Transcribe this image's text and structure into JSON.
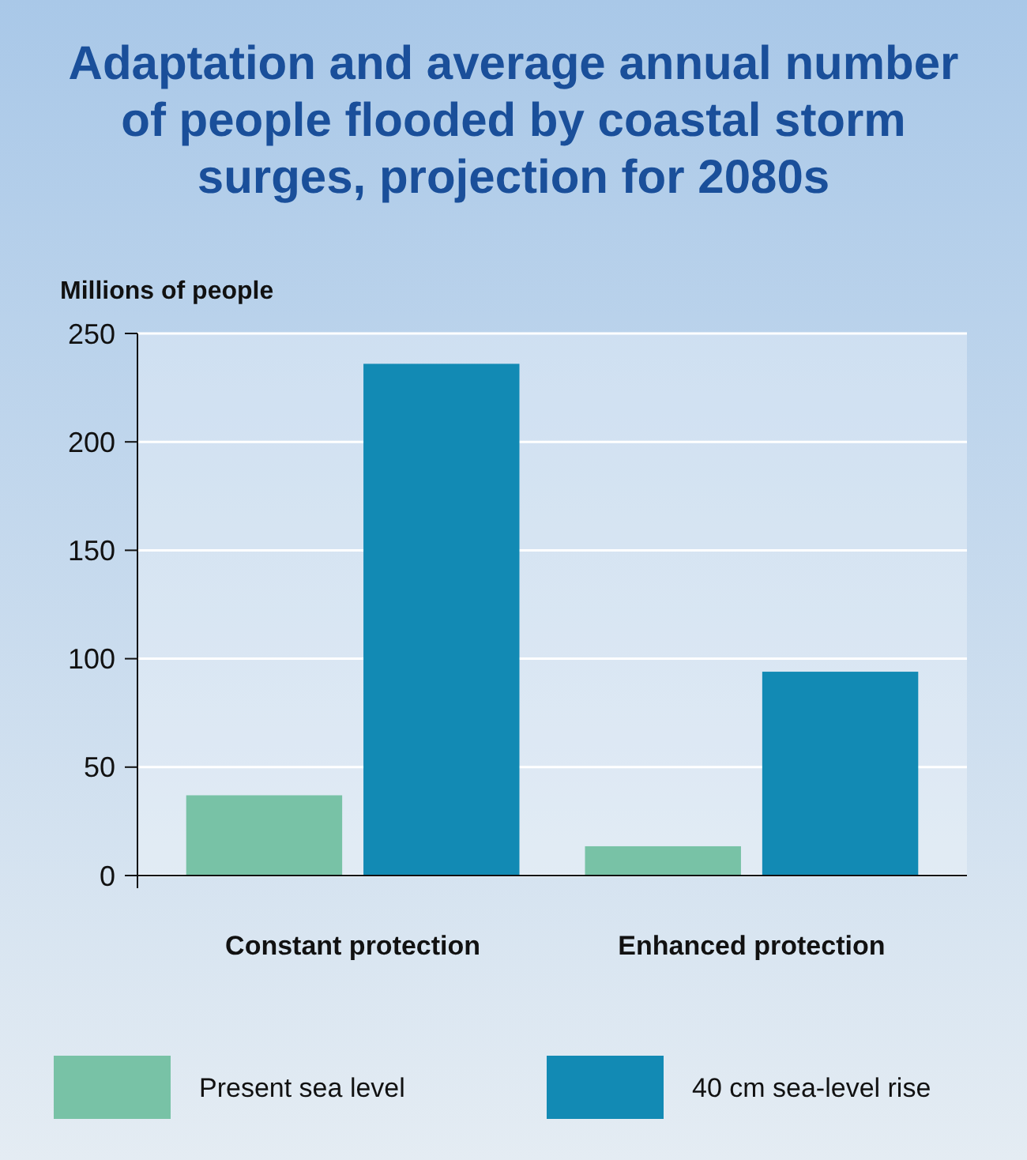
{
  "chart_data": {
    "type": "bar",
    "title": "Adaptation and average annual number of people flooded by coastal storm surges, projection for 2080s",
    "ylabel": "Millions of people",
    "categories": [
      "Constant protection",
      "Enhanced protection"
    ],
    "series": [
      {
        "name": "Present sea level",
        "color": "#78c2a6",
        "values": [
          37,
          13.5
        ]
      },
      {
        "name": "40 cm sea-level rise",
        "color": "#128ab4",
        "values": [
          236,
          94
        ]
      }
    ],
    "ylim": [
      0,
      250
    ],
    "yticks": [
      0,
      50,
      100,
      150,
      200,
      250
    ],
    "grid": "y",
    "legend": "bottom"
  }
}
